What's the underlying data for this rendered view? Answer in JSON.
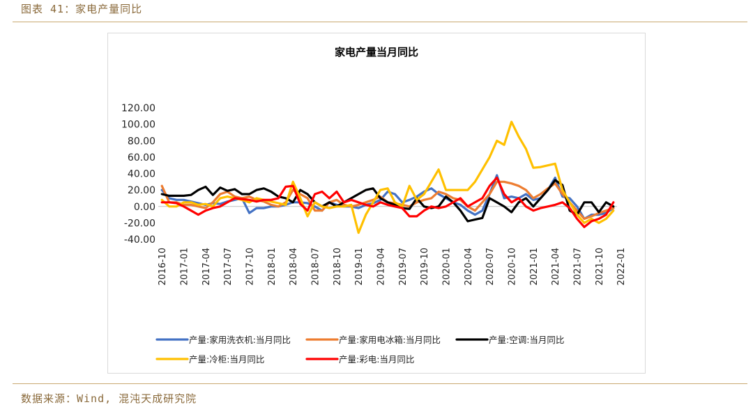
{
  "figure_caption": "图表 41：家电产量同比",
  "source_note": "数据来源：Wind, 混沌天成研究院",
  "chart_data": {
    "type": "line",
    "title": "家电产量当月同比",
    "xlabel": "",
    "ylabel": "",
    "ylim": [
      -40,
      120
    ],
    "yticks": [
      120,
      100,
      80,
      60,
      40,
      20,
      0,
      -20,
      -40
    ],
    "ytick_labels": [
      "120.00",
      "100.00",
      "80.00",
      "60.00",
      "40.00",
      "20.00",
      "0.00",
      "-20.00",
      "-40.00"
    ],
    "x": [
      "2016-10",
      "2016-11",
      "2016-12",
      "2017-01",
      "2017-02",
      "2017-03",
      "2017-04",
      "2017-05",
      "2017-06",
      "2017-07",
      "2017-08",
      "2017-09",
      "2017-10",
      "2017-11",
      "2017-12",
      "2018-01",
      "2018-02",
      "2018-03",
      "2018-04",
      "2018-05",
      "2018-06",
      "2018-07",
      "2018-08",
      "2018-09",
      "2018-10",
      "2018-11",
      "2018-12",
      "2019-01",
      "2019-02",
      "2019-03",
      "2019-04",
      "2019-05",
      "2019-06",
      "2019-07",
      "2019-08",
      "2019-09",
      "2019-10",
      "2019-11",
      "2019-12",
      "2020-01",
      "2020-02",
      "2020-03",
      "2020-04",
      "2020-05",
      "2020-06",
      "2020-07",
      "2020-08",
      "2020-09",
      "2020-10",
      "2020-11",
      "2020-12",
      "2021-01",
      "2021-02",
      "2021-03",
      "2021-04",
      "2021-05",
      "2021-06",
      "2021-07",
      "2021-08",
      "2021-09",
      "2021-10",
      "2021-11",
      "2021-12"
    ],
    "xtick_labels": [
      "2016-10",
      "2017-01",
      "2017-04",
      "2017-07",
      "2017-10",
      "2018-01",
      "2018-04",
      "2018-07",
      "2018-10",
      "2019-01",
      "2019-04",
      "2019-07",
      "2019-10",
      "2020-01",
      "2020-04",
      "2020-07",
      "2020-10",
      "2021-01",
      "2021-04",
      "2021-07",
      "2021-10",
      "2022-01"
    ],
    "grid": false,
    "legend_position": "bottom",
    "series": [
      {
        "name": "产量:家用洗衣机:当月同比",
        "color": "#4472c4",
        "values": [
          20,
          10,
          8,
          8,
          6,
          4,
          2,
          4,
          3,
          6,
          8,
          10,
          -8,
          -2,
          -2,
          0,
          0,
          2,
          5,
          5,
          4,
          0,
          -5,
          5,
          2,
          0,
          0,
          -2,
          2,
          4,
          8,
          18,
          15,
          5,
          8,
          12,
          18,
          22,
          15,
          10,
          5,
          2,
          -5,
          -10,
          -5,
          15,
          38,
          10,
          12,
          10,
          15,
          8,
          10,
          20,
          35,
          12,
          10,
          0,
          -15,
          -10,
          -10,
          -8,
          -2
        ]
      },
      {
        "name": "产量:家用电冰箱:当月同比",
        "color": "#ed7d31",
        "values": [
          25,
          5,
          5,
          2,
          2,
          0,
          -2,
          5,
          15,
          18,
          12,
          10,
          12,
          8,
          6,
          2,
          0,
          5,
          20,
          15,
          10,
          -5,
          -5,
          5,
          8,
          2,
          0,
          2,
          5,
          8,
          12,
          5,
          4,
          2,
          0,
          5,
          8,
          10,
          18,
          15,
          10,
          8,
          0,
          -5,
          5,
          15,
          30,
          30,
          28,
          25,
          20,
          10,
          15,
          22,
          28,
          15,
          5,
          -5,
          -15,
          -12,
          -8,
          -5,
          -2
        ]
      },
      {
        "name": "产量:空调:当月同比",
        "color": "#000000",
        "values": [
          15,
          13,
          13,
          13,
          14,
          20,
          24,
          14,
          23,
          19,
          21,
          15,
          15,
          20,
          22,
          18,
          12,
          10,
          5,
          20,
          15,
          5,
          0,
          5,
          0,
          5,
          10,
          15,
          20,
          22,
          10,
          5,
          2,
          -2,
          -3,
          10,
          0,
          -2,
          0,
          12,
          5,
          -5,
          -18,
          -16,
          -14,
          10,
          5,
          0,
          -7,
          5,
          10,
          0,
          10,
          20,
          32,
          26,
          -5,
          -10,
          5,
          5,
          -7,
          5,
          0
        ]
      },
      {
        "name": "产量:冷柜:当月同比",
        "color": "#ffc000",
        "values": [
          8,
          0,
          0,
          5,
          5,
          2,
          3,
          0,
          10,
          12,
          10,
          8,
          5,
          10,
          8,
          6,
          4,
          2,
          30,
          10,
          -12,
          5,
          0,
          -2,
          0,
          0,
          2,
          -32,
          -10,
          5,
          20,
          22,
          5,
          0,
          25,
          8,
          15,
          30,
          45,
          20,
          20,
          20,
          20,
          30,
          45,
          60,
          80,
          75,
          103,
          85,
          70,
          47,
          48,
          50,
          52,
          20,
          5,
          -10,
          -20,
          -15,
          -20,
          -15,
          -5
        ]
      },
      {
        "name": "产量:彩电:当月同比",
        "color": "#ff0000",
        "values": [
          5,
          5,
          4,
          0,
          -5,
          -10,
          -5,
          -2,
          0,
          5,
          10,
          9,
          8,
          6,
          8,
          8,
          10,
          24,
          25,
          3,
          -5,
          15,
          18,
          10,
          18,
          5,
          8,
          5,
          2,
          0,
          5,
          2,
          0,
          -2,
          -12,
          -12,
          -5,
          0,
          -2,
          0,
          5,
          10,
          0,
          5,
          10,
          25,
          35,
          15,
          5,
          10,
          0,
          -5,
          -2,
          0,
          2,
          5,
          -2,
          -15,
          -25,
          -18,
          -15,
          -10,
          5
        ]
      }
    ]
  }
}
